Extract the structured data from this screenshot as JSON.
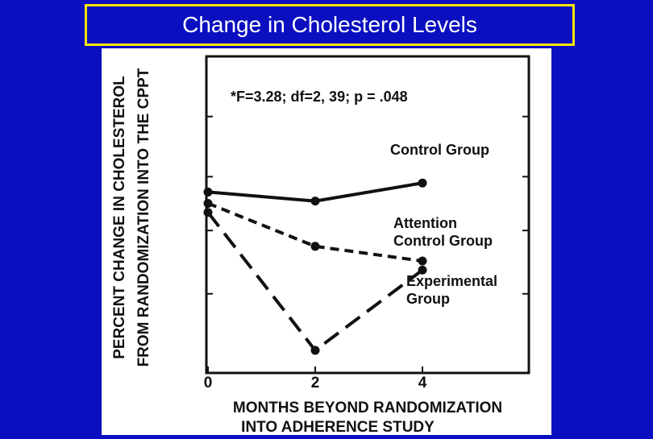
{
  "title": "Change in Cholesterol Levels",
  "chart_data": {
    "type": "line",
    "ylabel_line1": "PERCENT CHANGE IN CHOLESTEROL",
    "ylabel_line2": "FROM RANDOMIZATION INTO THE CPPT",
    "xlabel_line1": "MONTHS BEYOND RANDOMIZATION",
    "xlabel_line2": "INTO ADHERENCE STUDY",
    "annotation": "*F=3.28; df=2, 39; p = .048",
    "x_ticks": [
      "0",
      "2",
      "4"
    ],
    "xlim": [
      0,
      4.6
    ],
    "series": [
      {
        "name": "Control Group",
        "label_lines": [
          "Control Group"
        ],
        "style": "solid",
        "x": [
          0,
          2,
          4
        ],
        "y": [
          -0.5,
          -1.3,
          0.3
        ]
      },
      {
        "name": "Attention Control Group",
        "label_lines": [
          "Attention",
          "Control Group"
        ],
        "style": "dashed",
        "x": [
          0,
          2,
          4
        ],
        "y": [
          -1.5,
          -5.3,
          -6.6
        ]
      },
      {
        "name": "Experimental Group",
        "label_lines": [
          "Experimental",
          "Group"
        ],
        "style": "longdash",
        "x": [
          0,
          2,
          4
        ],
        "y": [
          -2.3,
          -14.5,
          -7.4
        ]
      }
    ],
    "ylim": [
      -16.5,
      11.5
    ],
    "grid": false,
    "legend": "labels placed next to lines"
  }
}
